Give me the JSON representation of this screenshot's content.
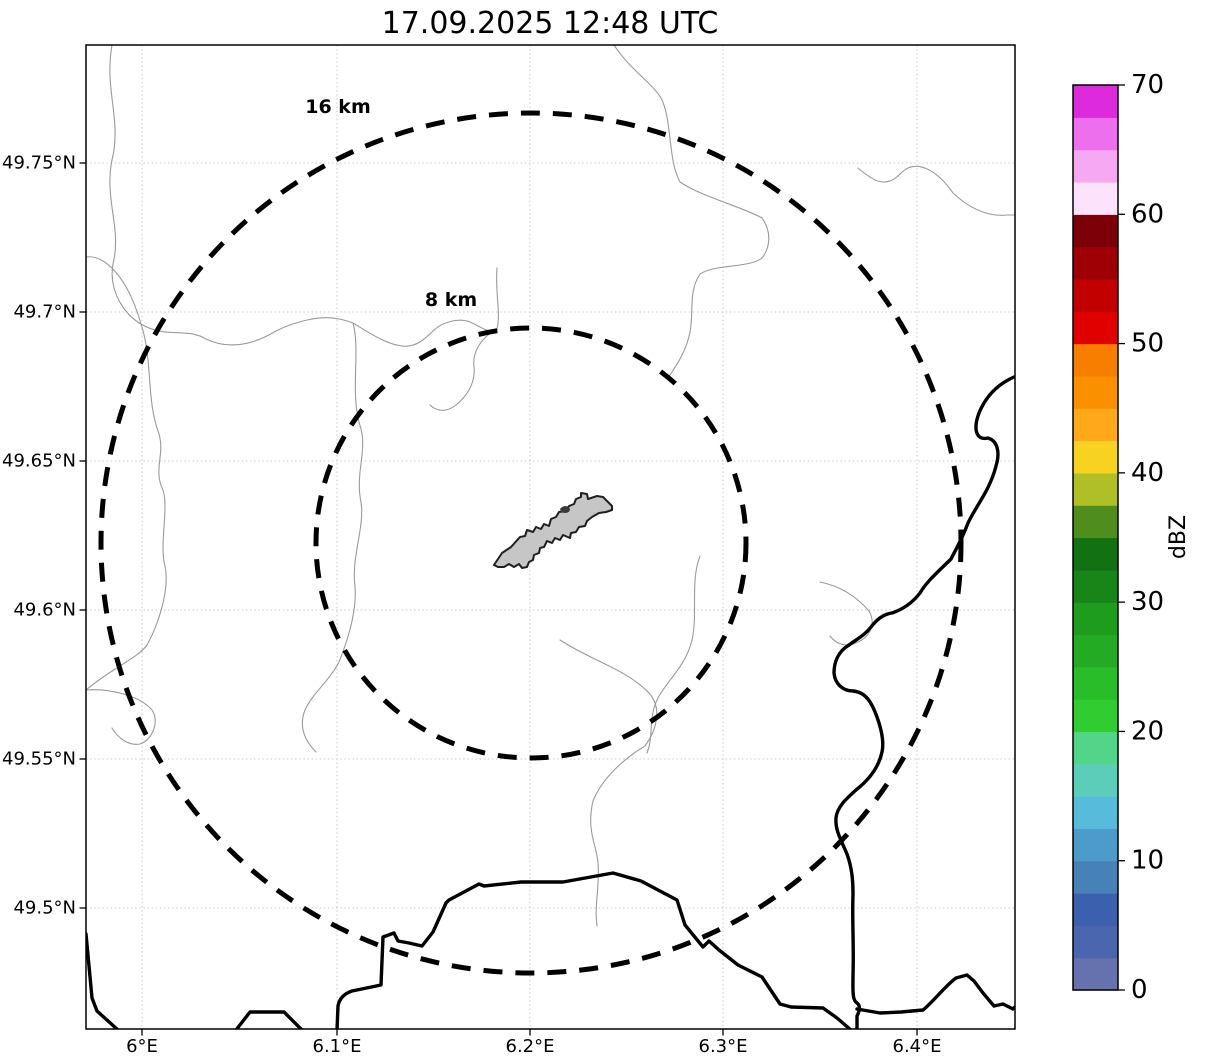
{
  "figure": {
    "title": "17.09.2025 12:48 UTC"
  },
  "map": {
    "x_axis": {
      "tick_labels": [
        "6°E",
        "6.1°E",
        "6.2°E",
        "6.3°E",
        "6.4°E"
      ],
      "tick_values_deg_east": [
        6.0,
        6.1,
        6.2,
        6.3,
        6.4
      ]
    },
    "y_axis": {
      "tick_labels": [
        "49.75°N",
        "49.7°N",
        "49.65°N",
        "49.6°N",
        "49.55°N",
        "49.5°N"
      ],
      "tick_values_deg_north": [
        49.75,
        49.7,
        49.65,
        49.6,
        49.55,
        49.5
      ]
    },
    "range_rings": [
      {
        "label": "16 km",
        "radius_km": 16
      },
      {
        "label": "8 km",
        "radius_km": 8
      }
    ],
    "features": {
      "airport_fill_color": "#c6c6c6",
      "airport_outline_color": "#1f1f1f",
      "country_border_color": "#000000",
      "admin_boundary_color": "#9a9a9a",
      "gridline_color": "#c9c9c9"
    }
  },
  "colorbar": {
    "label": "dBZ",
    "tick_labels": [
      "0",
      "10",
      "20",
      "30",
      "40",
      "50",
      "60",
      "70"
    ],
    "tick_values": [
      0,
      10,
      20,
      30,
      40,
      50,
      60,
      70
    ],
    "min": 0,
    "max": 70,
    "bin_width_dbz": 2.5,
    "colors_bottom_to_top": [
      "#6572AD",
      "#4A66AE",
      "#3B60AE",
      "#4682B8",
      "#4C9BCB",
      "#57BCDB",
      "#5CCDB9",
      "#52D589",
      "#30CC30",
      "#29BD29",
      "#23AC23",
      "#1D9C1D",
      "#178517",
      "#127112",
      "#4F8E1C",
      "#B1BF26",
      "#F8D220",
      "#FFA81A",
      "#FA9000",
      "#F87E00",
      "#E10000",
      "#C30000",
      "#9E0005",
      "#7C0008",
      "#FCE3FB",
      "#F6A8F3",
      "#ED6FED",
      "#DC2ADC"
    ]
  }
}
